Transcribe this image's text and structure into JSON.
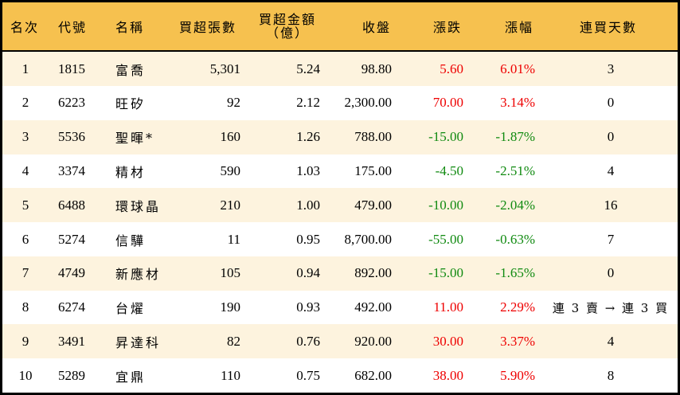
{
  "table": {
    "headers": {
      "rank": "名次",
      "code": "代號",
      "name": "名稱",
      "net_buy_lots": "買超張數",
      "net_buy_amount_line1": "買超金額",
      "net_buy_amount_line2": "（億）",
      "close": "收盤",
      "change": "漲跌",
      "change_pct": "漲幅",
      "consecutive_buy_days": "連買天數"
    },
    "colors": {
      "header_bg": "#f6c14f",
      "stripe_bg": "#fdf3de",
      "up": "#ee0000",
      "down": "#108a10"
    },
    "rows": [
      {
        "rank": "1",
        "code": "1815",
        "name": "富喬",
        "lots": "5,301",
        "amount": "5.24",
        "close": "98.80",
        "change": "5.60",
        "pct": "6.01%",
        "days": "3",
        "dir": "up"
      },
      {
        "rank": "2",
        "code": "6223",
        "name": "旺矽",
        "lots": "92",
        "amount": "2.12",
        "close": "2,300.00",
        "change": "70.00",
        "pct": "3.14%",
        "days": "0",
        "dir": "up"
      },
      {
        "rank": "3",
        "code": "5536",
        "name": "聖暉*",
        "lots": "160",
        "amount": "1.26",
        "close": "788.00",
        "change": "-15.00",
        "pct": "-1.87%",
        "days": "0",
        "dir": "down"
      },
      {
        "rank": "4",
        "code": "3374",
        "name": "精材",
        "lots": "590",
        "amount": "1.03",
        "close": "175.00",
        "change": "-4.50",
        "pct": "-2.51%",
        "days": "4",
        "dir": "down"
      },
      {
        "rank": "5",
        "code": "6488",
        "name": "環球晶",
        "lots": "210",
        "amount": "1.00",
        "close": "479.00",
        "change": "-10.00",
        "pct": "-2.04%",
        "days": "16",
        "dir": "down"
      },
      {
        "rank": "6",
        "code": "5274",
        "name": "信驊",
        "lots": "11",
        "amount": "0.95",
        "close": "8,700.00",
        "change": "-55.00",
        "pct": "-0.63%",
        "days": "7",
        "dir": "down"
      },
      {
        "rank": "7",
        "code": "4749",
        "name": "新應材",
        "lots": "105",
        "amount": "0.94",
        "close": "892.00",
        "change": "-15.00",
        "pct": "-1.65%",
        "days": "0",
        "dir": "down"
      },
      {
        "rank": "8",
        "code": "6274",
        "name": "台燿",
        "lots": "190",
        "amount": "0.93",
        "close": "492.00",
        "change": "11.00",
        "pct": "2.29%",
        "days": "連 3 賣 → 連 3 買",
        "dir": "up"
      },
      {
        "rank": "9",
        "code": "3491",
        "name": "昇達科",
        "lots": "82",
        "amount": "0.76",
        "close": "920.00",
        "change": "30.00",
        "pct": "3.37%",
        "days": "4",
        "dir": "up"
      },
      {
        "rank": "10",
        "code": "5289",
        "name": "宜鼎",
        "lots": "110",
        "amount": "0.75",
        "close": "682.00",
        "change": "38.00",
        "pct": "5.90%",
        "days": "8",
        "dir": "up"
      }
    ]
  }
}
